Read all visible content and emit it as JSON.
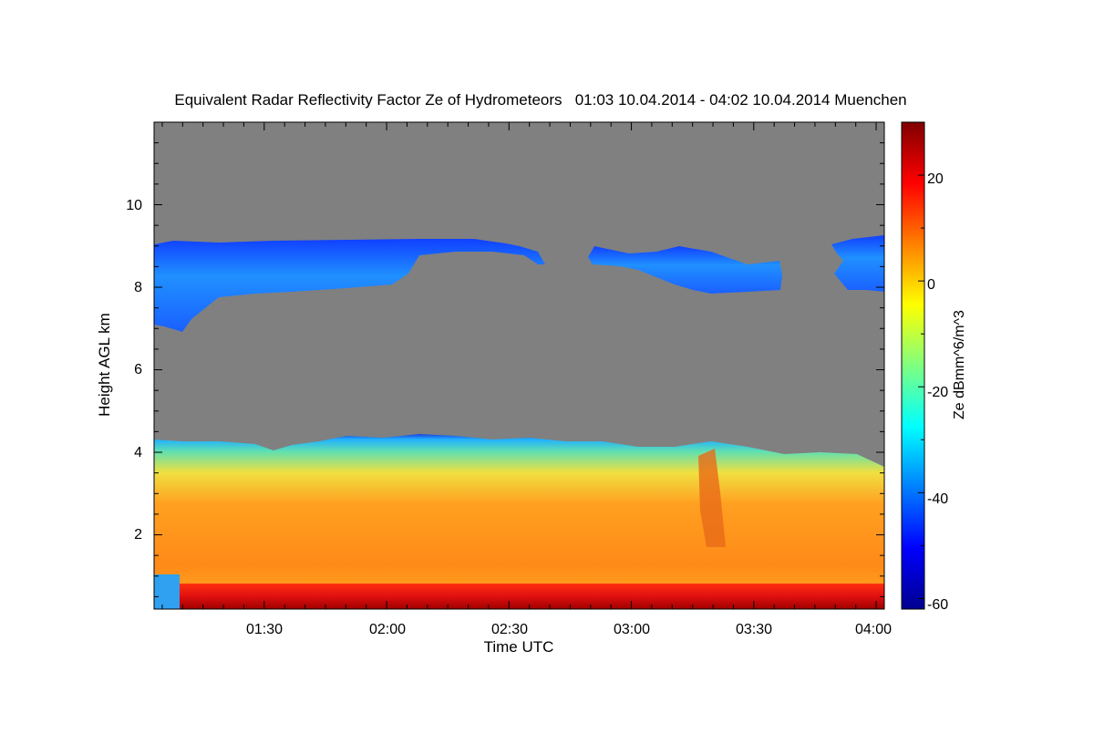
{
  "chart_data": {
    "type": "heatmap",
    "title": "Equivalent Radar Reflectivity Factor Ze of Hydrometeors   01:03 10.04.2014 - 04:02 10.04.2014 Muenchen",
    "xlabel": "Time UTC",
    "ylabel": "Height AGL km",
    "xlim": [
      "01:03",
      "04:02"
    ],
    "ylim": [
      0.2,
      12
    ],
    "x_ticks": [
      "01:30",
      "02:00",
      "02:30",
      "03:00",
      "03:30",
      "04:00"
    ],
    "y_ticks": [
      "2",
      "4",
      "6",
      "8",
      "10"
    ],
    "colorbar": {
      "label": "Ze dBmm^6/m^3",
      "range": [
        -62,
        30
      ],
      "ticks": [
        "20",
        "0",
        "-20",
        "-40",
        "-60"
      ],
      "colormap": "jet"
    },
    "colors": {
      "background_no_signal": "#808080",
      "high_cloud": "#1a66ff",
      "melting_layer": "#d01010",
      "detection_dots": "#000000"
    },
    "layers": [
      {
        "name": "high cirrus cloud, first segment",
        "time_start": "01:03",
        "time_end": "02:40",
        "base_km_min": 6.9,
        "top_km": 9.1,
        "ze_dbz_approx": -35
      },
      {
        "name": "high cirrus cloud, second segment",
        "time_start": "02:48",
        "time_end": "03:37",
        "base_km_min": 7.9,
        "top_km": 9.0,
        "ze_dbz_approx": -38
      },
      {
        "name": "high cirrus cloud, third segment",
        "time_start": "03:48",
        "time_end": "04:02",
        "base_km_min": 7.9,
        "top_km": 9.2,
        "ze_dbz_approx": -38
      },
      {
        "name": "low precipitating cloud",
        "time_start": "01:03",
        "time_end": "04:02",
        "base_km_min": 0.2,
        "top_km": 4.4,
        "ze_dbz_approx": 8
      },
      {
        "name": "bright band",
        "time_start": "01:03",
        "time_end": "04:02",
        "base_km_min": 0.2,
        "top_km": 0.7,
        "ze_dbz_approx": 25
      }
    ]
  }
}
